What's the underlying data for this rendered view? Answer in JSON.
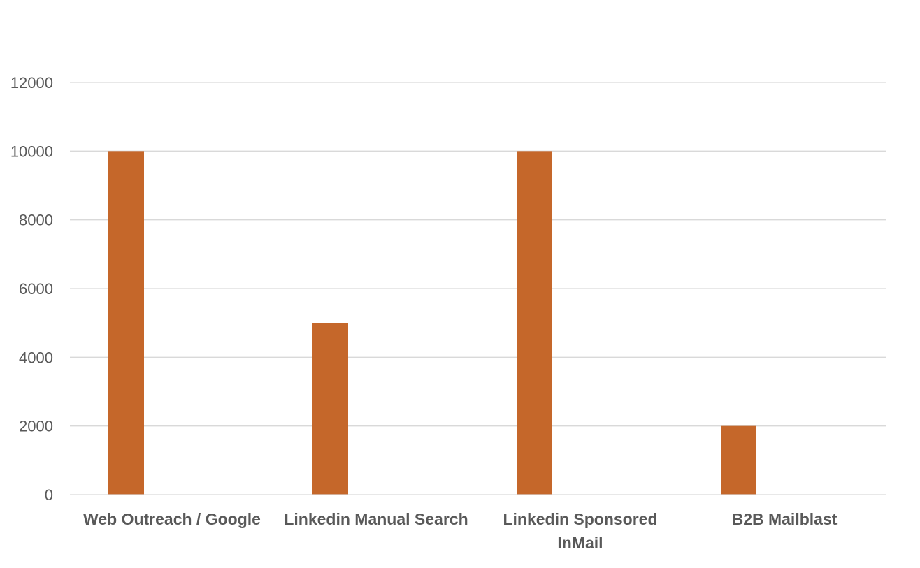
{
  "chart_data": {
    "type": "bar",
    "categories": [
      [
        "Web Outreach / Google"
      ],
      [
        "Linkedin Manual Search"
      ],
      [
        "Linkedin Sponsored",
        "InMail"
      ],
      [
        "B2B Mailblast"
      ]
    ],
    "series": [
      {
        "values": [
          10000,
          5000,
          10000,
          2000
        ],
        "color": "#c5672a"
      }
    ],
    "y_ticks": [
      "0",
      "2000",
      "4000",
      "6000",
      "8000",
      "10000",
      "12000"
    ],
    "ylim": [
      0,
      12000
    ],
    "grid": true,
    "legend": "none"
  }
}
